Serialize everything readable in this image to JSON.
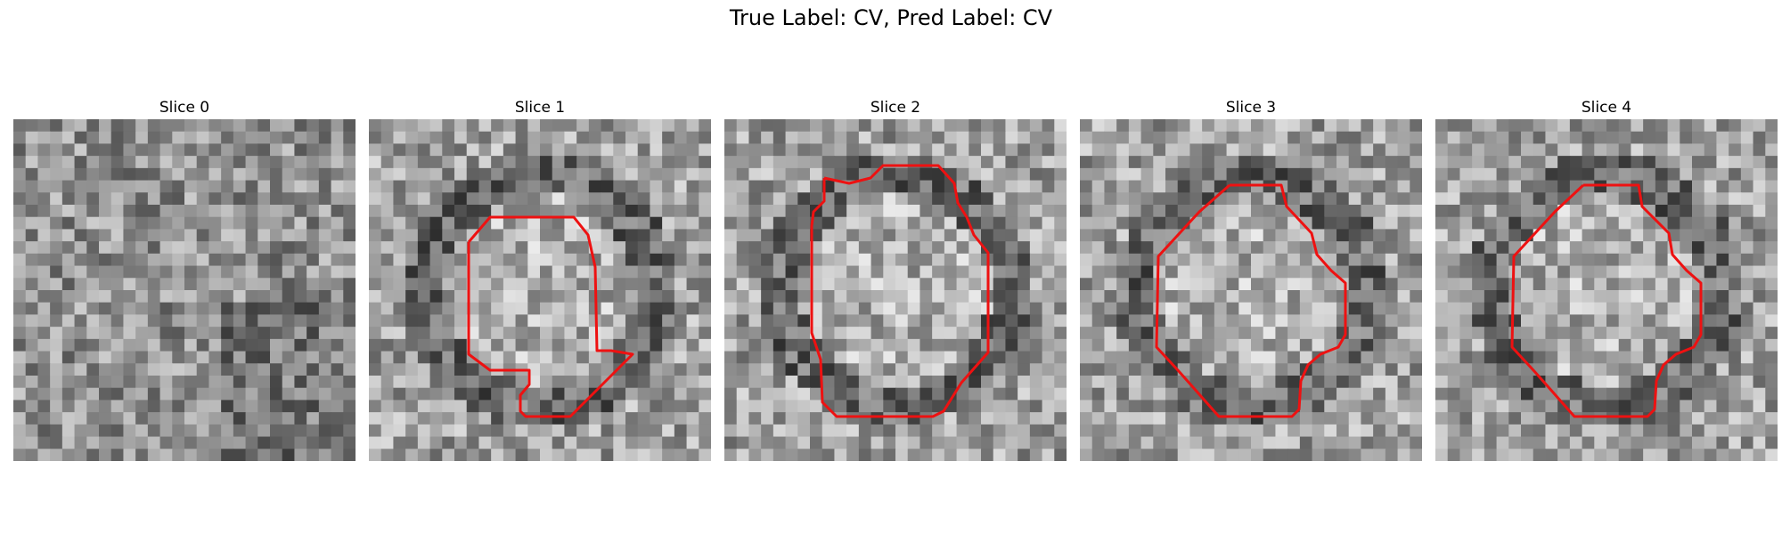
{
  "figure": {
    "title": "True Label: CV, Pred Label: CV",
    "contour_color": "#ee1111",
    "panels": [
      {
        "title": "Slice 0",
        "seed": 11,
        "has_contour": false
      },
      {
        "title": "Slice 1",
        "seed": 23,
        "has_contour": true
      },
      {
        "title": "Slice 2",
        "seed": 37,
        "has_contour": true
      },
      {
        "title": "Slice 3",
        "seed": 41,
        "has_contour": true
      },
      {
        "title": "Slice 4",
        "seed": 53,
        "has_contour": true
      }
    ]
  }
}
